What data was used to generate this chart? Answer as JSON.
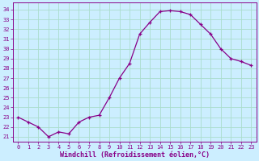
{
  "x": [
    0,
    1,
    2,
    3,
    4,
    5,
    6,
    7,
    8,
    9,
    10,
    11,
    12,
    13,
    14,
    15,
    16,
    17,
    18,
    19,
    20,
    21,
    22,
    23
  ],
  "y": [
    23.0,
    22.5,
    22.0,
    21.0,
    21.5,
    21.3,
    22.5,
    23.0,
    23.2,
    25.0,
    27.0,
    28.5,
    31.5,
    32.7,
    33.8,
    33.9,
    33.8,
    33.5,
    32.5,
    31.5,
    30.0,
    29.0,
    28.7,
    28.3
  ],
  "line_color": "#880088",
  "marker": "+",
  "markersize": 3,
  "linewidth": 0.9,
  "bg_color": "#cceeff",
  "grid_color": "#aaddcc",
  "tick_color": "#880088",
  "label_color": "#880088",
  "xlabel": "Windchill (Refroidissement éolien,°C)",
  "ylabel": "",
  "xlim": [
    -0.5,
    23.5
  ],
  "ylim": [
    20.5,
    34.7
  ],
  "yticks": [
    21,
    22,
    23,
    24,
    25,
    26,
    27,
    28,
    29,
    30,
    31,
    32,
    33,
    34
  ],
  "xticks": [
    0,
    1,
    2,
    3,
    4,
    5,
    6,
    7,
    8,
    9,
    10,
    11,
    12,
    13,
    14,
    15,
    16,
    17,
    18,
    19,
    20,
    21,
    22,
    23
  ],
  "tick_fontsize": 5.0,
  "xlabel_fontsize": 6.0,
  "figwidth": 3.2,
  "figheight": 2.0,
  "dpi": 100
}
